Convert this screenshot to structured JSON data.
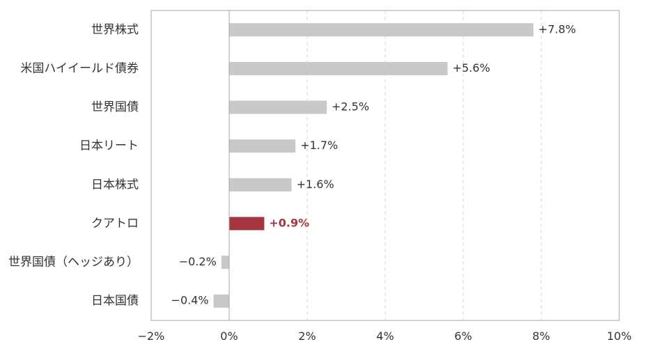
{
  "chart_data": {
    "type": "bar",
    "orientation": "horizontal",
    "categories": [
      "世界株式",
      "米国ハイイールド債券",
      "世界国債",
      "日本リート",
      "日本株式",
      "クアトロ",
      "世界国債（ヘッジあり）",
      "日本国債"
    ],
    "values": [
      7.8,
      5.6,
      2.5,
      1.7,
      1.6,
      0.9,
      -0.2,
      -0.4
    ],
    "value_labels": [
      "+7.8%",
      "+5.6%",
      "+2.5%",
      "+1.7%",
      "+1.6%",
      "+0.9%",
      "−0.2%",
      "−0.4%"
    ],
    "highlight_category": "クアトロ",
    "xlim": [
      -2,
      10
    ],
    "x_ticks": [
      -2,
      0,
      2,
      4,
      6,
      8,
      10
    ],
    "x_tick_labels": [
      "−2%",
      "0%",
      "2%",
      "4%",
      "6%",
      "8%",
      "10%"
    ],
    "grid": "vertical dashed",
    "legend": "none",
    "colors": {
      "bar": "#c8c8c8",
      "highlight": "#a3363f",
      "axis": "#a6a6a6",
      "grid": "#d9d9d9"
    }
  }
}
